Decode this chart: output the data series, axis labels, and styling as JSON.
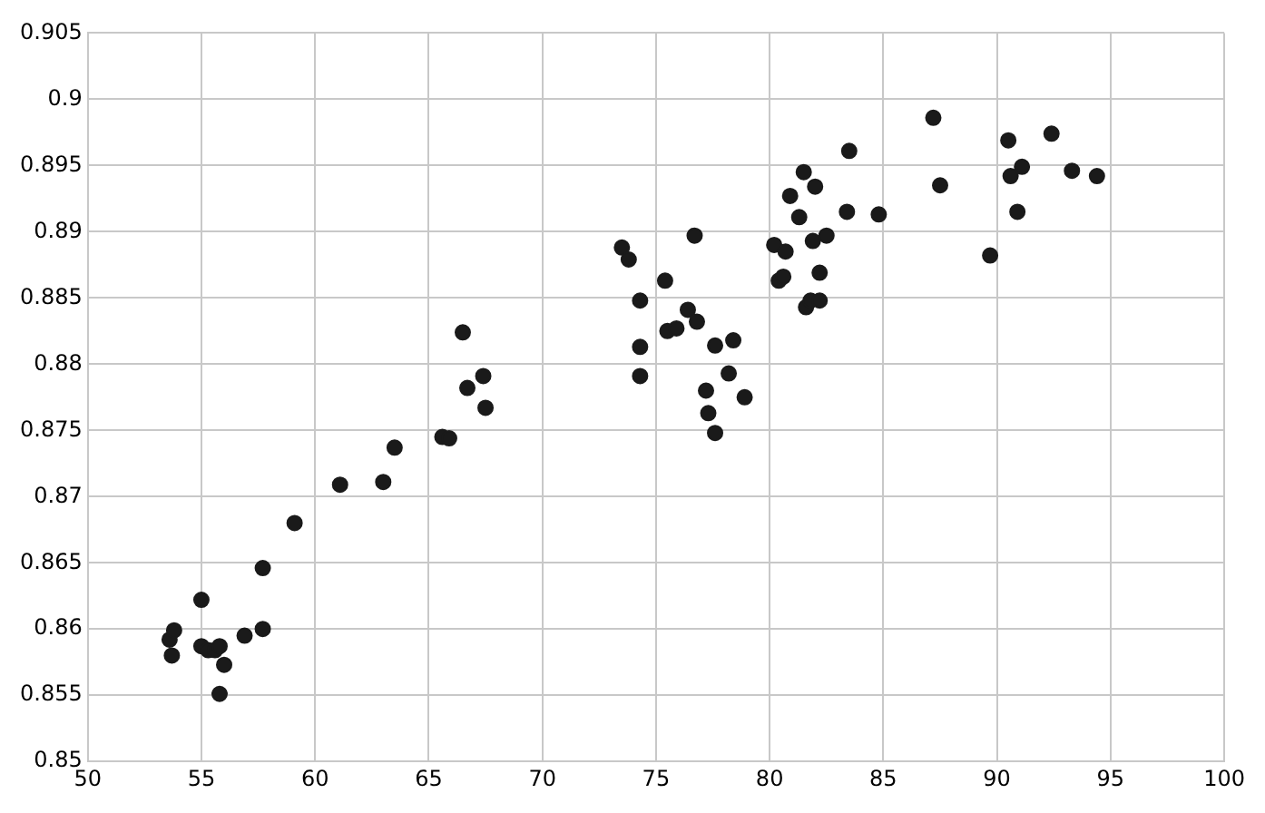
{
  "chart_data": {
    "type": "scatter",
    "x": [
      53.6,
      53.7,
      53.8,
      55.0,
      55.0,
      55.3,
      55.6,
      55.8,
      56.0,
      55.8,
      56.9,
      57.7,
      57.7,
      59.1,
      61.1,
      63.0,
      63.5,
      65.6,
      65.9,
      66.5,
      66.7,
      67.4,
      67.5,
      73.5,
      73.8,
      74.3,
      74.3,
      74.3,
      75.4,
      75.5,
      75.9,
      76.4,
      76.7,
      76.8,
      77.2,
      77.3,
      77.6,
      77.6,
      78.2,
      78.4,
      78.9,
      80.2,
      80.4,
      80.6,
      80.7,
      80.9,
      81.3,
      81.5,
      81.6,
      81.8,
      81.9,
      82.0,
      82.2,
      82.2,
      82.5,
      83.4,
      83.5,
      84.8,
      87.2,
      87.5,
      89.7,
      90.5,
      90.6,
      91.1,
      90.9,
      92.4,
      93.3,
      94.4
    ],
    "values": [
      0.8592,
      0.858,
      0.8599,
      0.8622,
      0.8587,
      0.8584,
      0.8584,
      0.8587,
      0.8573,
      0.8551,
      0.8595,
      0.86,
      0.8646,
      0.868,
      0.8709,
      0.8711,
      0.8737,
      0.8745,
      0.8744,
      0.8824,
      0.8782,
      0.8791,
      0.8767,
      0.8888,
      0.8879,
      0.8848,
      0.8813,
      0.8791,
      0.8863,
      0.8825,
      0.8827,
      0.8841,
      0.8897,
      0.8832,
      0.878,
      0.8763,
      0.8814,
      0.8748,
      0.8793,
      0.8818,
      0.8775,
      0.889,
      0.8863,
      0.8866,
      0.8885,
      0.8927,
      0.8911,
      0.8945,
      0.8843,
      0.8848,
      0.8893,
      0.8934,
      0.8869,
      0.8848,
      0.8897,
      0.8915,
      0.8961,
      0.8913,
      0.8986,
      0.8935,
      0.8882,
      0.8969,
      0.8942,
      0.8949,
      0.8915,
      0.8974,
      0.8946,
      0.8942
    ],
    "color": "#1a1a1a",
    "marker": "circle",
    "grid": true,
    "legend": false,
    "xlim": [
      50,
      100
    ],
    "xticks": [
      50,
      55,
      60,
      65,
      70,
      75,
      80,
      85,
      90,
      95,
      100
    ],
    "ylim": [
      0.85,
      0.905
    ],
    "yticks": [
      0.85,
      0.855,
      0.86,
      0.865,
      0.87,
      0.875,
      0.88,
      0.885,
      0.89,
      0.895,
      0.9,
      0.905
    ]
  }
}
